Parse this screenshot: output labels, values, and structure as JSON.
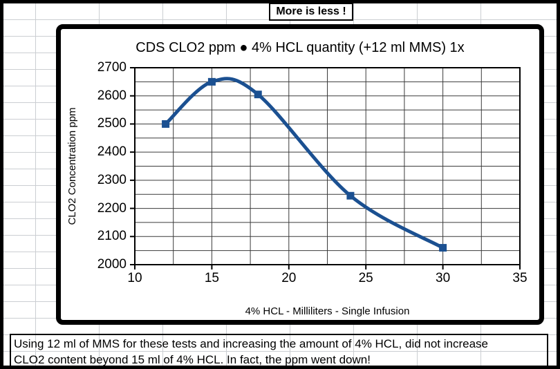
{
  "sheet": {
    "banner": "More is less !",
    "note_line1": "Using 12 ml of MMS for these tests and increasing the amount of 4% HCL, did not increase",
    "note_line2": "CLO2 content beyond 15 ml of 4% HCL. In fact, the ppm went down!"
  },
  "chart_data": {
    "type": "line",
    "title": "CDS CLO2 ppm ● 4% HCL quantity (+12 ml MMS) 1x",
    "xlabel": "4% HCL - Milliliters - Single Infusion",
    "ylabel": "CLO2 Concentration ppm",
    "x": [
      12,
      15,
      18,
      24,
      30
    ],
    "y": [
      2500,
      2650,
      2605,
      2245,
      2060
    ],
    "xlim": [
      10,
      35
    ],
    "ylim": [
      2000,
      2700
    ],
    "x_ticks": [
      10,
      15,
      20,
      25,
      30,
      35
    ],
    "y_ticks": [
      2000,
      2100,
      2200,
      2300,
      2400,
      2500,
      2600,
      2700
    ],
    "x_minor_grid_step": 2.5,
    "y_minor_grid_step": 50,
    "grid": true,
    "legend": "none",
    "smooth_line": true,
    "marker": "square",
    "marker_size_px": 11,
    "line_color": "#1b5091",
    "grid_color": "#3a3a3a",
    "axis_color": "#000000"
  }
}
